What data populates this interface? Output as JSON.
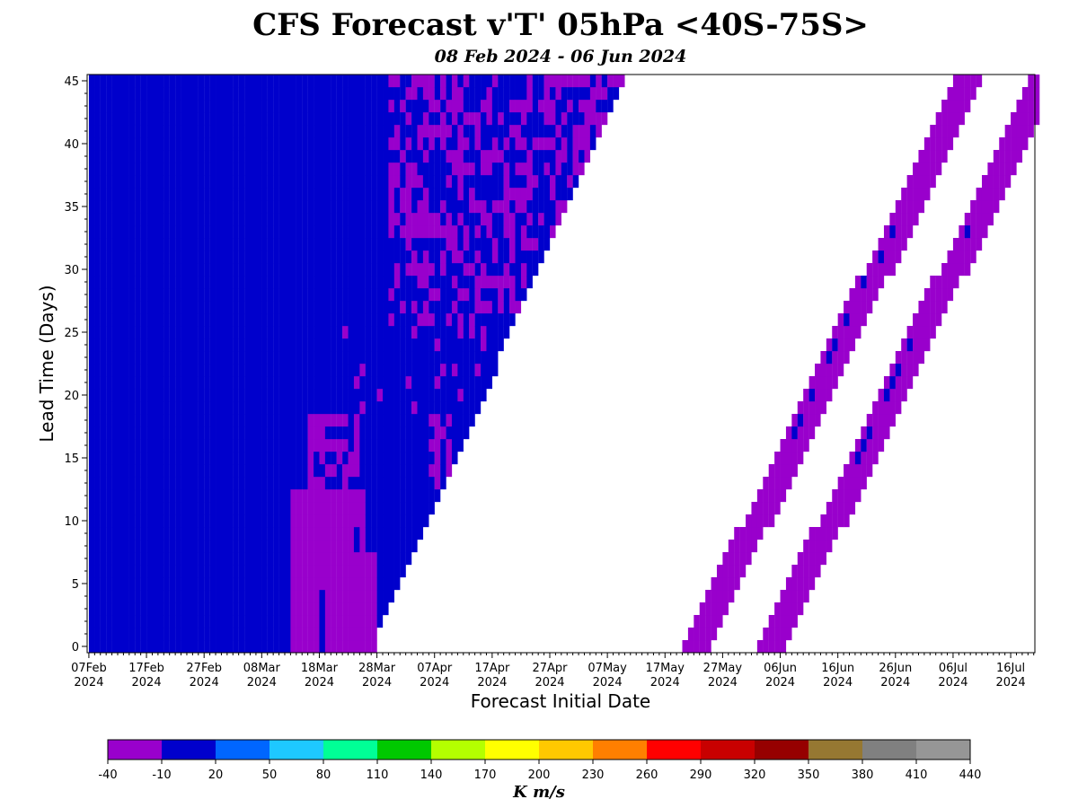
{
  "chart_data": {
    "type": "heatmap",
    "title": "CFS Forecast v'T' 05hPa <40S-75S>",
    "subtitle": "08 Feb 2024 - 06 Jun 2024",
    "xlabel": "Forecast Initial Date",
    "ylabel": "Lead Time (Days)",
    "colorbar_label": "K m/s",
    "x_start_date": "2024-02-07",
    "xlim_days": [
      -0.3,
      164.2
    ],
    "ylim": [
      -0.5,
      45.5
    ],
    "x_ticks": [
      {
        "day": 0,
        "label1": "07Feb",
        "label2": "2024"
      },
      {
        "day": 10,
        "label1": "17Feb",
        "label2": "2024"
      },
      {
        "day": 20,
        "label1": "27Feb",
        "label2": "2024"
      },
      {
        "day": 30,
        "label1": "08Mar",
        "label2": "2024"
      },
      {
        "day": 40,
        "label1": "18Mar",
        "label2": "2024"
      },
      {
        "day": 50,
        "label1": "28Mar",
        "label2": "2024"
      },
      {
        "day": 60,
        "label1": "07Apr",
        "label2": "2024"
      },
      {
        "day": 70,
        "label1": "17Apr",
        "label2": "2024"
      },
      {
        "day": 80,
        "label1": "27Apr",
        "label2": "2024"
      },
      {
        "day": 90,
        "label1": "07May",
        "label2": "2024"
      },
      {
        "day": 100,
        "label1": "17May",
        "label2": "2024"
      },
      {
        "day": 110,
        "label1": "27May",
        "label2": "2024"
      },
      {
        "day": 120,
        "label1": "06Jun",
        "label2": "2024"
      },
      {
        "day": 130,
        "label1": "16Jun",
        "label2": "2024"
      },
      {
        "day": 140,
        "label1": "26Jun",
        "label2": "2024"
      },
      {
        "day": 150,
        "label1": "06Jul",
        "label2": "2024"
      },
      {
        "day": 160,
        "label1": "16Jul",
        "label2": "2024"
      }
    ],
    "y_ticks": [
      0,
      5,
      10,
      15,
      20,
      25,
      30,
      35,
      40,
      45
    ],
    "levels": [
      -40,
      -10,
      20,
      50,
      80,
      110,
      140,
      170,
      200,
      230,
      260,
      290,
      320,
      350,
      380,
      410,
      440
    ],
    "colors": [
      "#9900cc",
      "#0000cc",
      "#0066ff",
      "#1ec8ff",
      "#00ff96",
      "#00c800",
      "#b4ff00",
      "#ffff00",
      "#ffc800",
      "#ff7f00",
      "#ff0000",
      "#c80000",
      "#960000",
      "#967832",
      "#808080",
      "#969696"
    ],
    "region_summary": [
      {
        "region": "initial-date days 0-35, all lead times",
        "class_value_range": [
          -10,
          20
        ]
      },
      {
        "region": "initial-date days 35-50, lead times 0-16",
        "class_value_range": [
          -40,
          -10
        ]
      },
      {
        "region": "initial-date days 50-92, leads 17-45, mixed",
        "class_value_range": [
          -40,
          20
        ]
      },
      {
        "region": "diagonal bands from 2024-05-20 and 2024-06-02",
        "class_value_range": [
          -40,
          -10
        ]
      }
    ]
  }
}
